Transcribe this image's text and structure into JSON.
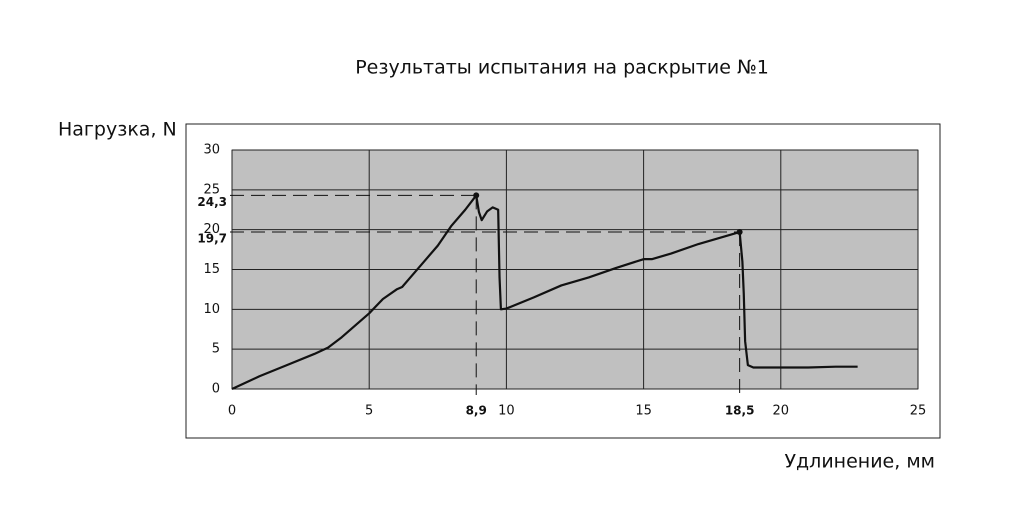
{
  "chart_data": {
    "type": "line",
    "title": "Результаты испытания на раскрытие №1",
    "ylabel": "Нагрузка, N",
    "xlabel": "Удлинение, мм",
    "x": [
      0,
      0.5,
      1,
      2,
      3,
      3.5,
      4,
      5,
      5.5,
      6,
      6.2,
      6.5,
      7,
      7.5,
      8,
      8.5,
      8.9,
      9,
      9.1,
      9.3,
      9.5,
      9.7,
      9.75,
      9.8,
      10,
      11,
      12,
      13,
      14,
      15,
      15.3,
      16,
      17,
      18,
      18.5,
      18.6,
      18.65,
      18.7,
      18.8,
      19,
      20,
      21,
      22,
      22.8
    ],
    "values": [
      0,
      0.8,
      1.6,
      3,
      4.4,
      5.2,
      6.5,
      9.5,
      11.3,
      12.5,
      12.8,
      14,
      16,
      18,
      20.5,
      22.5,
      24.3,
      22.2,
      21.2,
      22.3,
      22.8,
      22.5,
      14,
      10,
      10.1,
      11.5,
      13,
      14,
      15.2,
      16.3,
      16.3,
      17,
      18.2,
      19.2,
      19.7,
      16,
      12,
      6,
      3,
      2.7,
      2.7,
      2.7,
      2.8,
      2.8
    ],
    "color": "#111111",
    "xlim": [
      0,
      25
    ],
    "xticks": [
      0,
      5,
      10,
      15,
      20,
      25
    ],
    "ylim": [
      0,
      30
    ],
    "yticks": [
      0,
      5,
      10,
      15,
      20,
      25,
      30
    ],
    "grid": true,
    "annotations": [
      {
        "x": {
          "value": 8.9,
          "label": "8,9"
        },
        "y": {
          "value": 24.3,
          "label": "24,3"
        }
      },
      {
        "x": {
          "value": 18.5,
          "label": "18,5"
        },
        "y": {
          "value": 19.7,
          "label": "19,7"
        }
      }
    ]
  }
}
